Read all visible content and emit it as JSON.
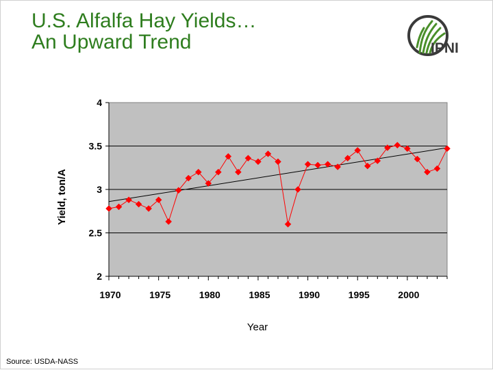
{
  "slide": {
    "title_line1": "U.S. Alfalfa Hay Yields…",
    "title_line2": "An Upward Trend",
    "logo_text": "IPNI",
    "source": "Source: USDA-NASS"
  },
  "colors": {
    "title": "#2e7d1e",
    "plot_bg": "#c0c0c0",
    "series": "#ff0000",
    "trend": "#000000",
    "logo_green": "#4a8f2a"
  },
  "chart_data": {
    "type": "line",
    "title": "",
    "xlabel": "Year",
    "ylabel": "Yield, ton/A",
    "xlim": [
      1970,
      2004
    ],
    "ylim": [
      2,
      4
    ],
    "y_ticks": [
      "2",
      "2.5",
      "3",
      "3.5",
      "4"
    ],
    "x_ticks": [
      "1970",
      "1975",
      "1980",
      "1985",
      "1990",
      "1995",
      "2000"
    ],
    "grid": "horizontal",
    "series": [
      {
        "x": [
          1970,
          1971,
          1972,
          1973,
          1974,
          1975,
          1976,
          1977,
          1978,
          1979,
          1980,
          1981,
          1982,
          1983,
          1984,
          1985,
          1986,
          1987,
          1988,
          1989,
          1990,
          1991,
          1992,
          1993,
          1994,
          1995,
          1996,
          1997,
          1998,
          1999,
          2000,
          2001,
          2002,
          2003,
          2004
        ],
        "values": [
          2.78,
          2.8,
          2.88,
          2.83,
          2.78,
          2.88,
          2.63,
          2.99,
          3.13,
          3.2,
          3.07,
          3.2,
          3.38,
          3.2,
          3.36,
          3.32,
          3.41,
          3.32,
          2.6,
          3.0,
          3.29,
          3.28,
          3.29,
          3.26,
          3.36,
          3.45,
          3.27,
          3.33,
          3.48,
          3.51,
          3.47,
          3.35,
          3.2,
          3.24,
          3.47
        ]
      }
    ],
    "trendline": {
      "x": [
        1970,
        2004
      ],
      "values": [
        2.86,
        3.48
      ]
    }
  }
}
